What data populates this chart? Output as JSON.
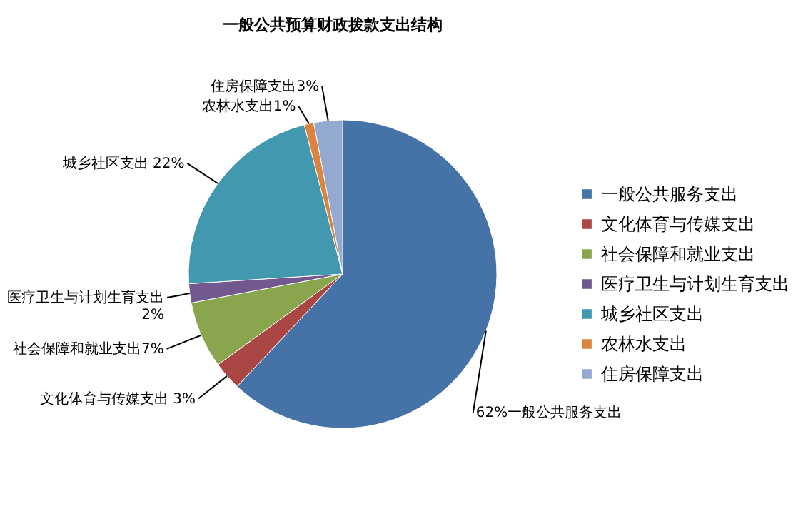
{
  "chart_data": {
    "type": "pie",
    "title": "一般公共预算财政拨款支出结构",
    "categories": [
      "一般公共服务支出",
      "文化体育与传媒支出",
      "社会保障和就业支出",
      "医疗卫生与计划生育支出",
      "城乡社区支出",
      "农林水支出",
      "住房保障支出"
    ],
    "values": [
      62,
      3,
      7,
      2,
      22,
      1,
      3
    ],
    "colors": [
      "#4572a7",
      "#aa4643",
      "#89a54e",
      "#71588f",
      "#4198af",
      "#db843d",
      "#93a9cf"
    ],
    "value_labels": [
      "62%一般公共服务支出",
      "文化体育与传媒支出 3%",
      "社会保障和就业支出7%",
      "医疗卫生与计划生育支出\n2%",
      "城乡社区支出 22%",
      "农林水支出1%",
      "住房保障支出3%"
    ],
    "legend": "right"
  }
}
